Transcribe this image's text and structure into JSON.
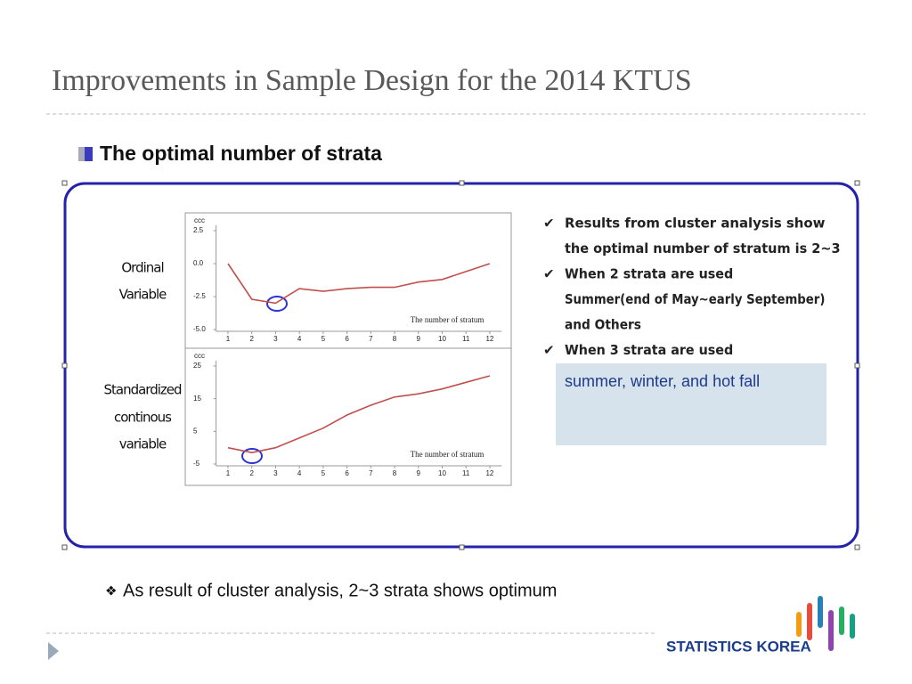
{
  "title": "Improvements in Sample Design for the 2014 KTUS",
  "heading": "The optimal number of strata",
  "row_labels": [
    {
      "lines": [
        "Ordinal",
        "Variable"
      ]
    },
    {
      "lines": [
        "Standardized",
        "continous",
        "variable"
      ]
    }
  ],
  "bullets": [
    {
      "lines": [
        "Results from cluster analysis show",
        "the optimal number of stratum is 2~3"
      ]
    },
    {
      "lines": [
        "When 2 strata are used",
        "Summer(end of May~early September)",
        "and Others"
      ]
    },
    {
      "lines": [
        "When 3 strata are used"
      ]
    }
  ],
  "box_text": "summer,  winter, and hot fall",
  "footer_note": "As result of cluster analysis,  2~3 strata shows optimum",
  "logo": "STATISTICS KOREA",
  "chart_data": [
    {
      "type": "line",
      "y_label": "ccc",
      "annotation": "The number of stratum",
      "color": "#c0504d",
      "x": [
        1,
        2,
        3,
        4,
        5,
        6,
        7,
        8,
        9,
        10,
        11,
        12
      ],
      "values": [
        0.0,
        -2.7,
        -3.0,
        -1.9,
        -2.1,
        -1.9,
        -1.8,
        -1.8,
        -1.4,
        -1.2,
        -0.6,
        0.0
      ],
      "xlim": [
        0.5,
        12.5
      ],
      "xticks": [
        1,
        2,
        3,
        4,
        5,
        6,
        7,
        8,
        9,
        10,
        11,
        12
      ],
      "ylim": [
        -5,
        2.5
      ],
      "yticks": [
        2.5,
        {
          "value": 0,
          "label": "0.0"
        },
        -2.5,
        {
          "value": -5,
          "label": "-5.0"
        }
      ]
    },
    {
      "type": "line",
      "y_label": "ccc",
      "annotation": "The number of stratum",
      "color": "#c0504d",
      "x": [
        1,
        2,
        3,
        4,
        5,
        6,
        7,
        8,
        9,
        10,
        11,
        12
      ],
      "values": [
        0,
        -1.5,
        0,
        3,
        6,
        10,
        13,
        15.5,
        16.5,
        18,
        20,
        22
      ],
      "xlim": [
        0.5,
        12.5
      ],
      "xticks": [
        1,
        2,
        3,
        4,
        5,
        6,
        7,
        8,
        9,
        10,
        11,
        12
      ],
      "ylim": [
        -5,
        25
      ],
      "yticks": [
        25,
        15,
        5,
        -5
      ]
    }
  ]
}
